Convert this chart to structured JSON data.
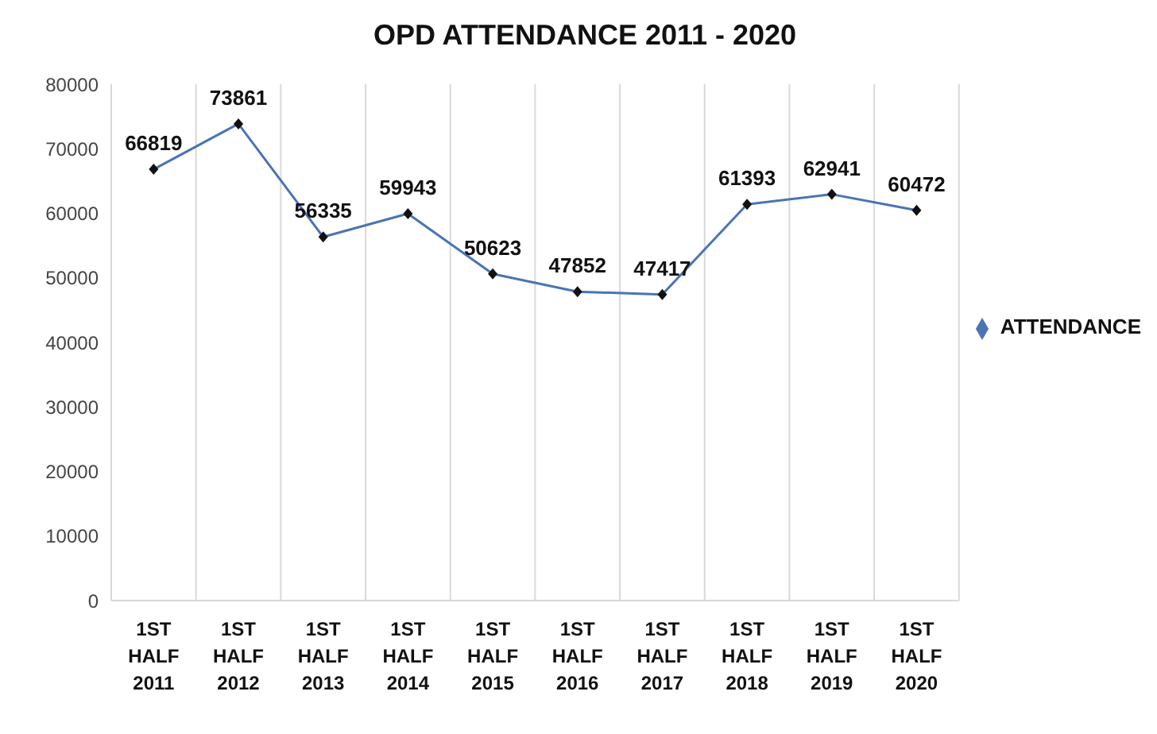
{
  "chart_data": {
    "type": "line",
    "title": "OPD ATTENDANCE 2011 - 2020",
    "categories": [
      "1ST HALF 2011",
      "1ST HALF 2012",
      "1ST HALF 2013",
      "1ST HALF 2014",
      "1ST HALF 2015",
      "1ST HALF 2016",
      "1ST HALF 2017",
      "1ST HALF 2018",
      "1ST HALF 2019",
      "1ST HALF 2020"
    ],
    "series": [
      {
        "name": "ATTENDANCE",
        "color": "#4a74b4",
        "values": [
          66819,
          73861,
          56335,
          59943,
          50623,
          47852,
          47417,
          61393,
          62941,
          60472
        ]
      }
    ],
    "ylim": [
      0,
      80000
    ],
    "yticks": [
      0,
      10000,
      20000,
      30000,
      40000,
      50000,
      60000,
      70000,
      80000
    ],
    "grid": "x",
    "legend": "right",
    "marker": "diamond",
    "line_style": "solid",
    "data_labels": true
  }
}
